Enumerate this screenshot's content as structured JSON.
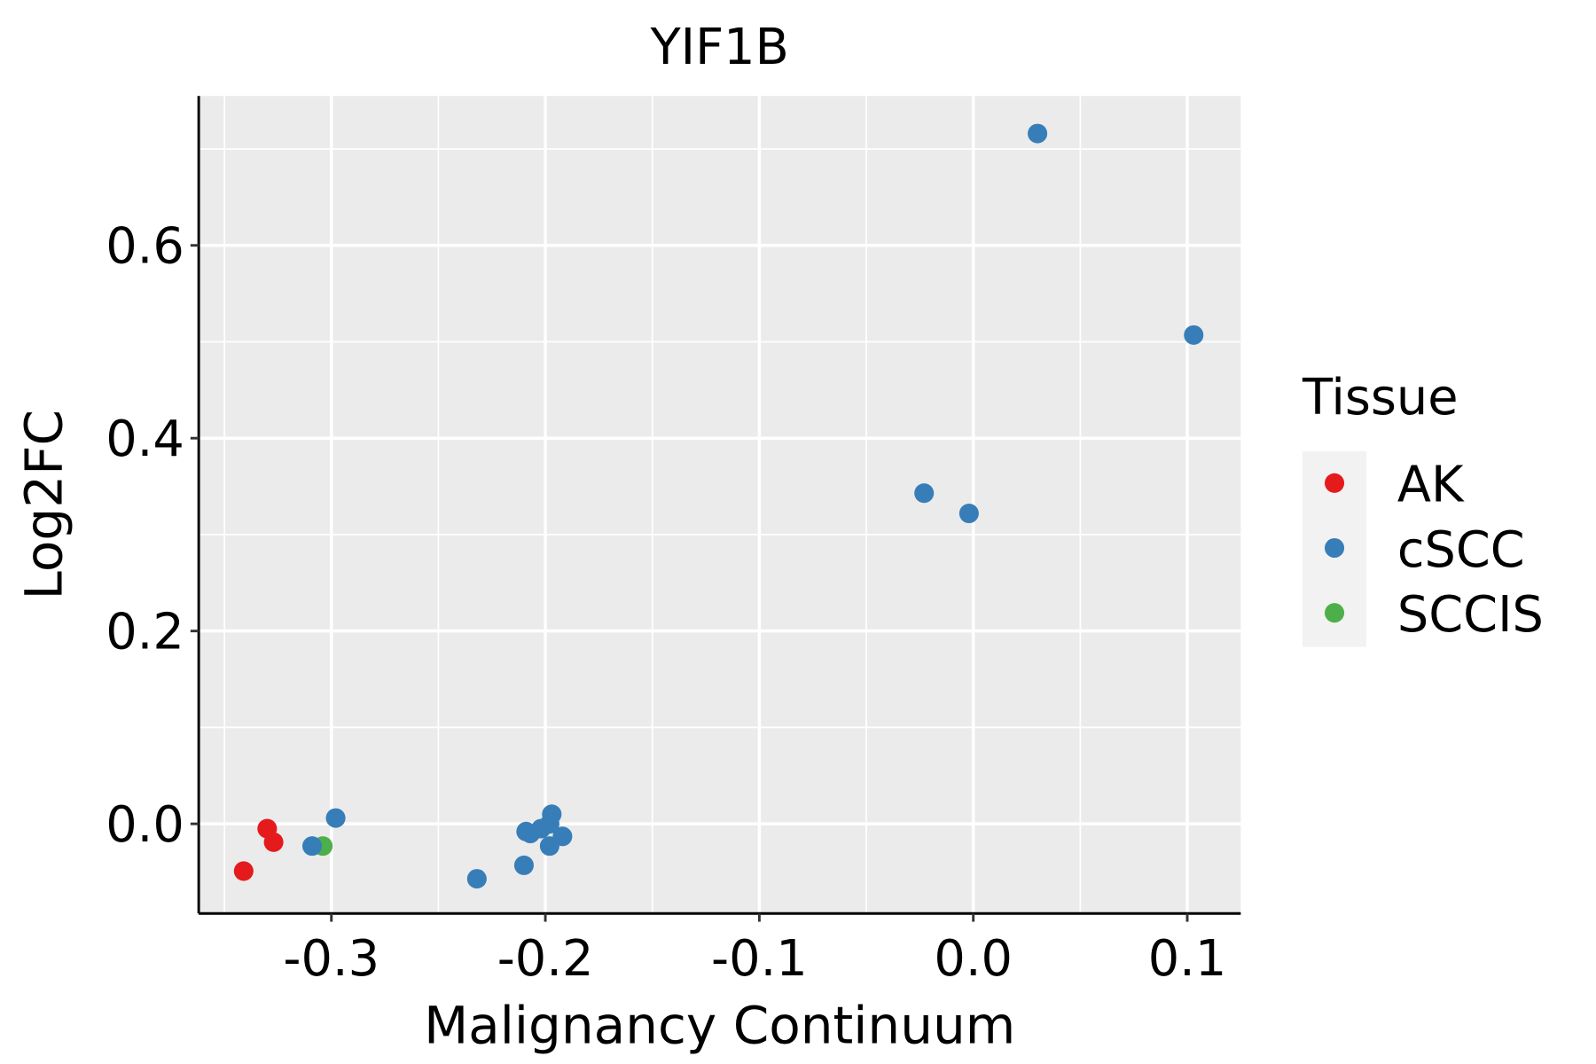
{
  "chart_data": {
    "type": "scatter",
    "title": "YIF1B",
    "xlabel": "Malignancy Continuum",
    "ylabel": "Log2FC",
    "xlim": [
      -0.362,
      0.125
    ],
    "ylim": [
      -0.093,
      0.755
    ],
    "xticks": [
      -0.3,
      -0.2,
      -0.1,
      0.0,
      0.1
    ],
    "xtick_labels": [
      "-0.3",
      "-0.2",
      "-0.1",
      "0.0",
      "0.1"
    ],
    "yticks": [
      0.0,
      0.2,
      0.4,
      0.6
    ],
    "ytick_labels": [
      "0.0",
      "0.2",
      "0.4",
      "0.6"
    ],
    "grid": true,
    "legend": {
      "title": "Tissue",
      "placement": "right"
    },
    "series": [
      {
        "name": "AK",
        "color": "#E41A1C",
        "points": [
          [
            -0.341,
            -0.049
          ],
          [
            -0.33,
            -0.005
          ],
          [
            -0.327,
            -0.019
          ]
        ]
      },
      {
        "name": "cSCC",
        "color": "#377EB8",
        "points": [
          [
            -0.309,
            -0.023
          ],
          [
            -0.298,
            0.006
          ],
          [
            -0.232,
            -0.057
          ],
          [
            -0.21,
            -0.043
          ],
          [
            -0.209,
            -0.008
          ],
          [
            -0.207,
            -0.01
          ],
          [
            -0.202,
            -0.005
          ],
          [
            -0.198,
            0.0
          ],
          [
            -0.197,
            0.01
          ],
          [
            -0.192,
            -0.013
          ],
          [
            -0.198,
            -0.023
          ],
          [
            -0.023,
            0.343
          ],
          [
            -0.002,
            0.322
          ],
          [
            0.03,
            0.716
          ],
          [
            0.103,
            0.507
          ]
        ]
      },
      {
        "name": "SCCIS",
        "color": "#4DAF4A",
        "points": [
          [
            -0.304,
            -0.023
          ]
        ]
      }
    ]
  }
}
